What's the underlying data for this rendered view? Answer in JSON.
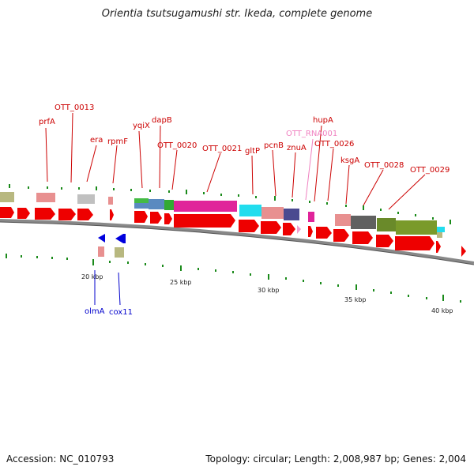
{
  "title": "Orientia tsutsugamushi str. Ikeda, complete genome",
  "footer": {
    "accession": "Accession: NC_010793",
    "summary": "Topology: circular; Length: 2,008,987 bp; Genes: 2,004"
  },
  "colors": {
    "cds_red": "#ee0000",
    "label_red": "#cc0000",
    "rna_pink": "#f080c0",
    "minus_strand_blue": "#0000cc",
    "backbone_gray": "#888888",
    "tick_green": "#1a8a1a"
  },
  "scale_labels": [
    "20 kbp",
    "25 kbp",
    "30 kbp",
    "35 kbp",
    "40 kbp"
  ],
  "gene_labels": {
    "prfA": "prfA",
    "OTT_0013": "OTT_0013",
    "era": "era",
    "rpmF": "rpmF",
    "yqiX": "yqiX",
    "dapB": "dapB",
    "OTT_0020": "OTT_0020",
    "OTT_0021": "OTT_0021",
    "gltP": "gltP",
    "pcnB": "pcnB",
    "znuA": "znuA",
    "OTT_RNA001": "OTT_RNA001",
    "hupA": "hupA",
    "OTT_0026": "OTT_0026",
    "ksgA": "ksgA",
    "OTT_0028": "OTT_0028",
    "OTT_0029": "OTT_0029",
    "olmA": "olmA",
    "cox11": "cox11"
  }
}
